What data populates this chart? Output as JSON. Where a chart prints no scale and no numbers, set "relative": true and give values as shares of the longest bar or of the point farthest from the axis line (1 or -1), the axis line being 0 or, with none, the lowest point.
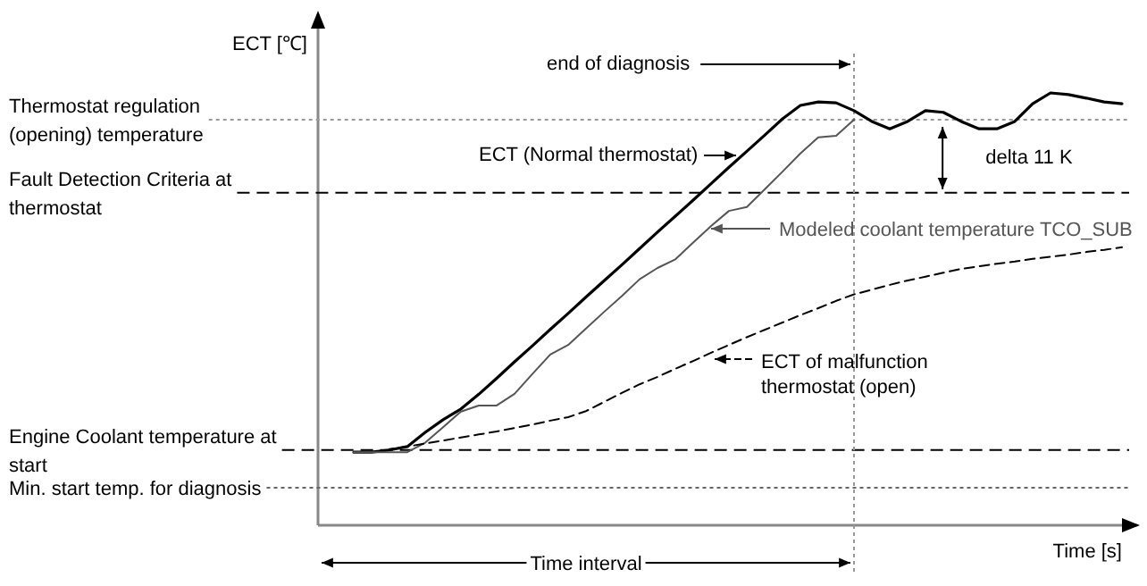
{
  "chart_data": {
    "type": "line",
    "relative": true,
    "xlabel": "Time [s]",
    "ylabel": "ECT [℃]",
    "legend": "right",
    "categories": [
      null,
      null,
      null,
      null,
      null,
      null,
      null,
      null,
      null,
      null,
      null,
      null,
      null,
      null,
      null,
      null,
      null,
      null,
      null,
      null,
      null,
      null,
      null,
      null,
      null,
      null,
      null,
      null,
      null,
      null,
      null,
      null,
      null,
      null,
      null,
      null,
      null,
      null,
      null,
      null,
      null,
      null,
      null,
      null,
      null,
      null
    ],
    "series": [
      {
        "name": "ECT (Normal thermostat)",
        "color": "#000000",
        "line_style": "solid",
        "values": [
          null,
          null,
          0.169,
          0.169,
          0.174,
          0.182,
          0.215,
          0.244,
          0.269,
          0.303,
          0.34,
          0.378,
          0.415,
          0.453,
          0.49,
          0.528,
          0.565,
          0.602,
          0.64,
          0.678,
          0.715,
          0.752,
          0.79,
          0.828,
          0.865,
          0.902,
          0.94,
          0.971,
          0.979,
          0.977,
          0.959,
          0.934,
          0.917,
          0.934,
          0.959,
          0.955,
          0.934,
          0.917,
          0.917,
          0.934,
          0.975,
          1,
          0.996,
          0.988,
          0.979,
          0.975
        ]
      },
      {
        "name": "Modeled coolant temperature  TCO_SUB",
        "color": "#555555",
        "line_style": "solid",
        "values": [
          null,
          null,
          0.169,
          0.169,
          0.169,
          0.169,
          0.191,
          0.227,
          0.263,
          0.277,
          0.277,
          0.304,
          0.35,
          0.395,
          0.417,
          0.455,
          0.493,
          0.53,
          0.569,
          0.595,
          0.615,
          0.654,
          0.692,
          0.727,
          0.736,
          0.777,
          0.818,
          0.86,
          0.897,
          0.901,
          0.938,
          null,
          null,
          null,
          null,
          null,
          null,
          null,
          null,
          null,
          null,
          null,
          null,
          null,
          null,
          null
        ]
      },
      {
        "name": "ECT of malfunction thermostat (open)",
        "color": "#000000",
        "line_style": "dashed",
        "values": [
          null,
          null,
          null,
          null,
          0.176,
          0.182,
          0.189,
          0.196,
          0.203,
          0.21,
          0.217,
          0.225,
          0.233,
          0.242,
          0.25,
          0.264,
          0.285,
          0.306,
          0.326,
          0.343,
          0.362,
          0.38,
          0.399,
          0.417,
          0.435,
          0.452,
          0.469,
          0.486,
          0.502,
          0.519,
          0.534,
          0.545,
          0.556,
          0.566,
          0.575,
          0.584,
          0.593,
          0.599,
          0.605,
          0.61,
          0.616,
          0.621,
          0.626,
          0.632,
          0.637,
          0.643
        ]
      }
    ],
    "ref_lines": [
      {
        "axis": "y",
        "value": 0.938,
        "label": "Thermostat regulation (opening) temperature",
        "color": "#999999",
        "line_style": "dotted"
      },
      {
        "axis": "y",
        "value": 0.769,
        "label": "Fault Detection Criteria at thermostat",
        "color": "#000000",
        "line_style": "dashed"
      },
      {
        "axis": "y",
        "value": 0.174,
        "label": "Engine Coolant temperature at start",
        "color": "#000000",
        "line_style": "dashed"
      },
      {
        "axis": "y",
        "value": 0.087,
        "label": "Min. start temp. for diagnosis",
        "color": "#666666",
        "line_style": "dotted"
      }
    ],
    "annotations": [
      "end of diagnosis",
      "delta 11 K",
      "Time interval"
    ]
  }
}
